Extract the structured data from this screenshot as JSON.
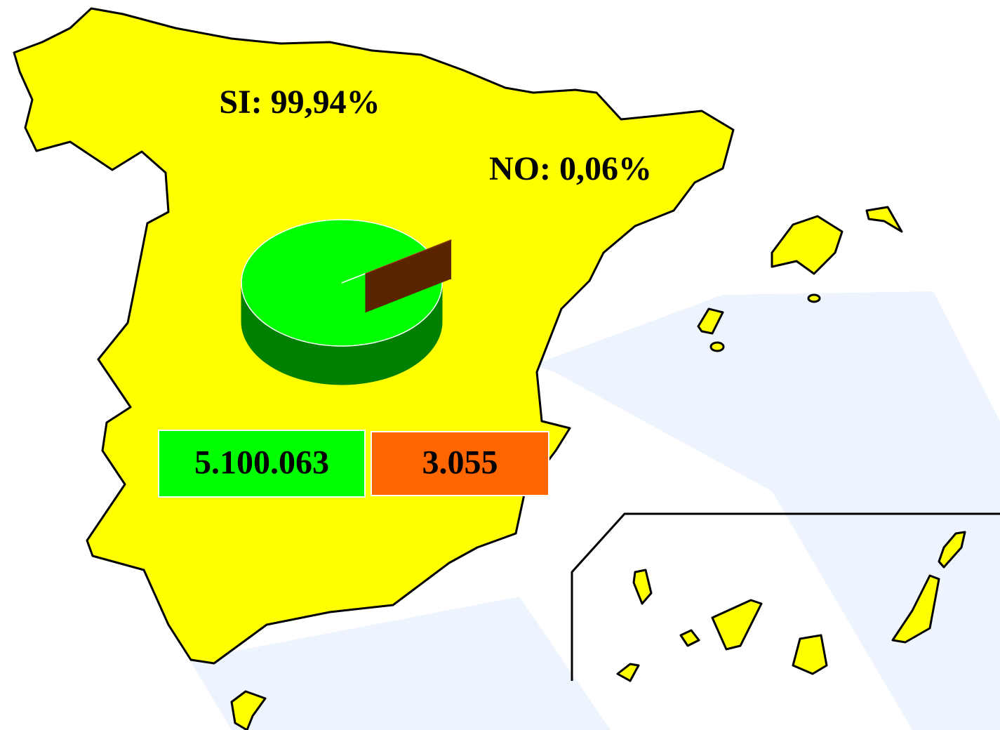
{
  "chart_data": {
    "type": "pie",
    "values": [
      99.94,
      0.06
    ],
    "value_labels": [
      "SI: 99,94%",
      "NO: 0,06%"
    ],
    "colors": [
      "#00ff00",
      "#7f3300"
    ],
    "side_colors": [
      "#008000",
      "#5a2400"
    ],
    "votes": [
      5100063,
      3055
    ],
    "vote_labels": [
      "5.100.063",
      "3.055"
    ],
    "vote_colors": [
      "#00ff00",
      "#ff6600"
    ]
  }
}
